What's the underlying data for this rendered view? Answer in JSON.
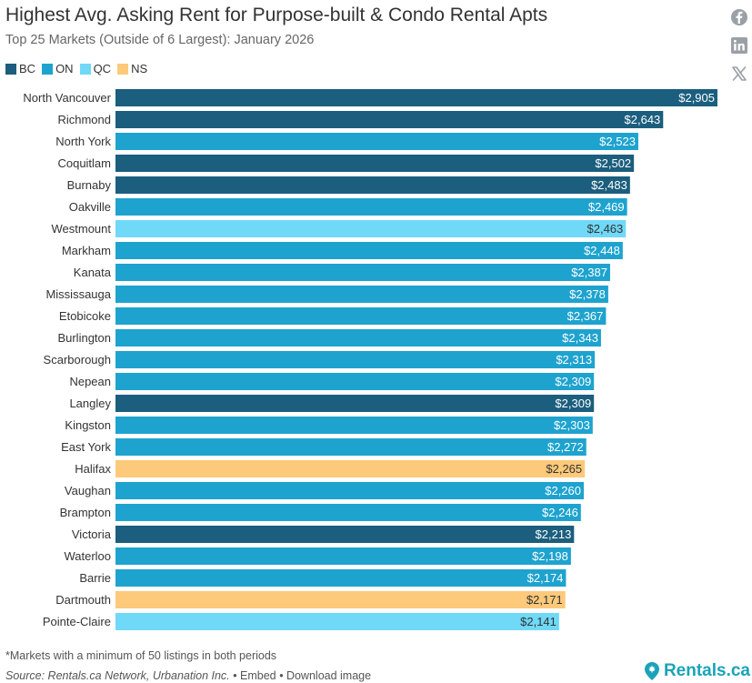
{
  "header": {
    "title": "Highest Avg. Asking Rent for Purpose-built & Condo Rental Apts",
    "subtitle": "Top 25 Markets (Outside of 6 Largest): January 2026"
  },
  "social": {
    "facebook_icon": "facebook-icon",
    "linkedin_icon": "linkedin-icon",
    "x_icon": "x-icon"
  },
  "legend": [
    {
      "label": "BC",
      "color": "#1b5e7d"
    },
    {
      "label": "ON",
      "color": "#1ea3cf"
    },
    {
      "label": "QC",
      "color": "#6fd9f7"
    },
    {
      "label": "NS",
      "color": "#fdc97a"
    }
  ],
  "chart_data": {
    "type": "bar",
    "orientation": "horizontal",
    "title": "Highest Avg. Asking Rent for Purpose-built & Condo Rental Apts",
    "subtitle": "Top 25 Markets (Outside of 6 Largest): January 2026",
    "xlabel": "",
    "ylabel": "",
    "xlim": [
      0,
      2905
    ],
    "grid": false,
    "legend_position": "top-left",
    "categories": [
      "North Vancouver",
      "Richmond",
      "North York",
      "Coquitlam",
      "Burnaby",
      "Oakville",
      "Westmount",
      "Markham",
      "Kanata",
      "Mississauga",
      "Etobicoke",
      "Burlington",
      "Scarborough",
      "Nepean",
      "Langley",
      "Kingston",
      "East York",
      "Halifax",
      "Vaughan",
      "Brampton",
      "Victoria",
      "Waterloo",
      "Barrie",
      "Dartmouth",
      "Pointe-Claire"
    ],
    "values": [
      2905,
      2643,
      2523,
      2502,
      2483,
      2469,
      2463,
      2448,
      2387,
      2378,
      2367,
      2343,
      2313,
      2309,
      2309,
      2303,
      2272,
      2265,
      2260,
      2246,
      2213,
      2198,
      2174,
      2171,
      2141
    ],
    "value_labels": [
      "$2,905",
      "$2,643",
      "$2,523",
      "$2,502",
      "$2,483",
      "$2,469",
      "$2,463",
      "$2,448",
      "$2,387",
      "$2,378",
      "$2,367",
      "$2,343",
      "$2,313",
      "$2,309",
      "$2,309",
      "$2,303",
      "$2,272",
      "$2,265",
      "$2,260",
      "$2,246",
      "$2,213",
      "$2,198",
      "$2,174",
      "$2,171",
      "$2,141"
    ],
    "groups": [
      "BC",
      "BC",
      "ON",
      "BC",
      "BC",
      "ON",
      "QC",
      "ON",
      "ON",
      "ON",
      "ON",
      "ON",
      "ON",
      "ON",
      "BC",
      "ON",
      "ON",
      "NS",
      "ON",
      "ON",
      "BC",
      "ON",
      "ON",
      "NS",
      "QC"
    ]
  },
  "footer": {
    "footnote": "*Markets with a minimum of 50 listings in both periods",
    "source": "Source: Rentals.ca Network, Urbanation Inc.",
    "embed": "Embed",
    "download": "Download image",
    "brand": "Rentals.ca"
  }
}
